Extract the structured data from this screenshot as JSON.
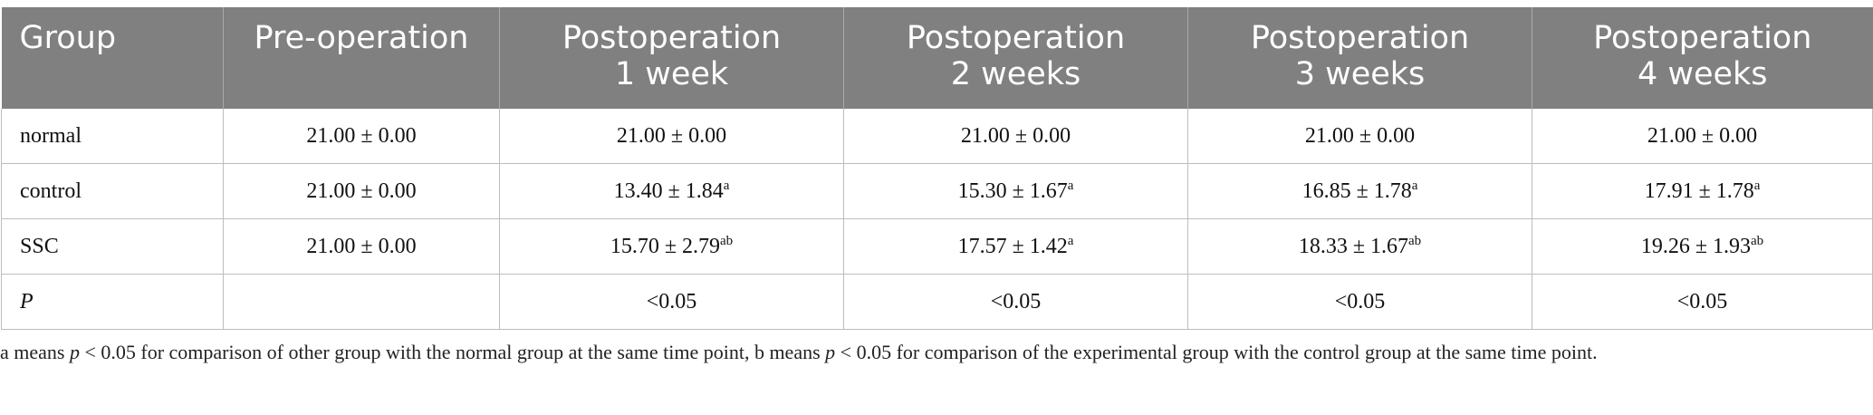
{
  "table": {
    "headers": [
      {
        "line1": "Group",
        "line2": ""
      },
      {
        "line1": "Pre-operation",
        "line2": ""
      },
      {
        "line1": "Postoperation",
        "line2": "1 week"
      },
      {
        "line1": "Postoperation",
        "line2": "2 weeks"
      },
      {
        "line1": "Postoperation",
        "line2": "3 weeks"
      },
      {
        "line1": "Postoperation",
        "line2": "4 weeks"
      }
    ],
    "rows": [
      {
        "group": "normal",
        "cells": [
          {
            "v": "21.00 ± 0.00",
            "sup": ""
          },
          {
            "v": "21.00 ± 0.00",
            "sup": ""
          },
          {
            "v": "21.00 ± 0.00",
            "sup": ""
          },
          {
            "v": "21.00 ± 0.00",
            "sup": ""
          },
          {
            "v": "21.00 ± 0.00",
            "sup": ""
          }
        ]
      },
      {
        "group": "control",
        "cells": [
          {
            "v": "21.00 ± 0.00",
            "sup": ""
          },
          {
            "v": "13.40 ± 1.84",
            "sup": "a"
          },
          {
            "v": "15.30 ± 1.67",
            "sup": "a"
          },
          {
            "v": "16.85 ± 1.78",
            "sup": "a"
          },
          {
            "v": "17.91 ± 1.78",
            "sup": "a"
          }
        ]
      },
      {
        "group": "SSC",
        "cells": [
          {
            "v": "21.00 ± 0.00",
            "sup": ""
          },
          {
            "v": "15.70 ± 2.79",
            "sup": "ab"
          },
          {
            "v": "17.57 ± 1.42",
            "sup": "a"
          },
          {
            "v": "18.33 ± 1.67",
            "sup": "ab"
          },
          {
            "v": "19.26 ± 1.93",
            "sup": "ab"
          }
        ]
      },
      {
        "group": "P",
        "italic": true,
        "cells": [
          {
            "v": "",
            "sup": ""
          },
          {
            "v": "<0.05",
            "sup": ""
          },
          {
            "v": "<0.05",
            "sup": ""
          },
          {
            "v": "<0.05",
            "sup": ""
          },
          {
            "v": "<0.05",
            "sup": ""
          }
        ]
      }
    ]
  },
  "footnote": {
    "part1": "a means ",
    "p1": "p",
    "part2": " < 0.05 for comparison of other group with the normal group at the same time point, b means ",
    "p2": "p",
    "part3": " < 0.05 for comparison of the experimental group with the control group at the same time point."
  }
}
